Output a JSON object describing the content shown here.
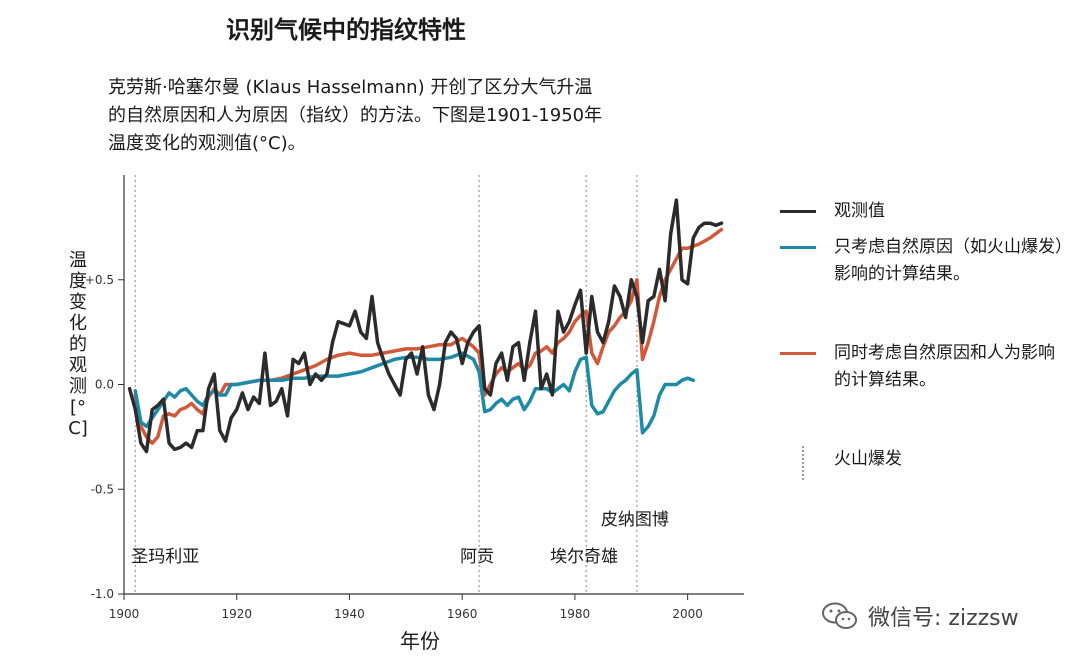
{
  "title": "识别气候中的指纹特性",
  "intro": [
    "克劳斯·哈塞尔曼 (Klaus  Hasselmann) 开创了区分大气升温",
    "的自然原因和人为原因（指纹）的方法。下图是1901-1950年",
    "温度变化的观测值(°C)。"
  ],
  "colors": {
    "observed": "#2b2b2b",
    "natural": "#1f8aa8",
    "combined": "#d2583a",
    "volcano": "#999999"
  },
  "legend": {
    "observed": "观测值",
    "natural": "只考虑自然原因（如火山爆发）影响的计算结果。",
    "combined": "同时考虑自然原因和人为影响的计算结果。",
    "volcano": "火山爆发"
  },
  "watermark": {
    "text": "微信号: zizzsw",
    "icon": "wechat-icon"
  },
  "chart_data": {
    "type": "line",
    "xlabel": "年份",
    "ylabel": "温度变化的观测[°C]",
    "xlim": [
      1900,
      2010
    ],
    "ylim": [
      -1.0,
      1.0
    ],
    "xticks": [
      1900,
      1920,
      1940,
      1960,
      1980,
      2000
    ],
    "yticks": [
      -1.0,
      -0.5,
      0.0,
      0.5
    ],
    "ytick_labels": [
      "-1.0",
      "-0.5",
      "0.0",
      "+0.5"
    ],
    "legend_position": "right",
    "grid": false,
    "annotations": [
      {
        "year": 1902,
        "label": "圣玛利亚"
      },
      {
        "year": 1963,
        "label": "阿贡"
      },
      {
        "year": 1982,
        "label": "埃尔奇雄"
      },
      {
        "year": 1991,
        "label": "皮纳图博"
      }
    ],
    "series": [
      {
        "name": "观测值",
        "x": [
          1901,
          1902,
          1903,
          1904,
          1905,
          1906,
          1907,
          1908,
          1909,
          1910,
          1911,
          1912,
          1913,
          1914,
          1915,
          1916,
          1917,
          1918,
          1919,
          1920,
          1921,
          1922,
          1923,
          1924,
          1925,
          1926,
          1927,
          1928,
          1929,
          1930,
          1931,
          1932,
          1933,
          1934,
          1935,
          1936,
          1937,
          1938,
          1939,
          1940,
          1941,
          1942,
          1943,
          1944,
          1945,
          1946,
          1947,
          1948,
          1949,
          1950,
          1951,
          1952,
          1953,
          1954,
          1955,
          1956,
          1957,
          1958,
          1959,
          1960,
          1961,
          1962,
          1963,
          1964,
          1965,
          1966,
          1967,
          1968,
          1969,
          1970,
          1971,
          1972,
          1973,
          1974,
          1975,
          1976,
          1977,
          1978,
          1979,
          1980,
          1981,
          1982,
          1983,
          1984,
          1985,
          1986,
          1987,
          1988,
          1989,
          1990,
          1991,
          1992,
          1993,
          1994,
          1995,
          1996,
          1997,
          1998,
          1999,
          2000,
          2001,
          2002,
          2003,
          2004,
          2005,
          2006
        ],
        "y": [
          -0.02,
          -0.12,
          -0.28,
          -0.32,
          -0.12,
          -0.1,
          -0.07,
          -0.28,
          -0.31,
          -0.3,
          -0.28,
          -0.3,
          -0.22,
          -0.22,
          -0.02,
          0.05,
          -0.22,
          -0.27,
          -0.16,
          -0.12,
          -0.04,
          -0.12,
          -0.06,
          -0.09,
          0.15,
          -0.1,
          -0.08,
          -0.02,
          -0.15,
          0.12,
          0.1,
          0.15,
          0.0,
          0.05,
          0.02,
          0.05,
          0.2,
          0.3,
          0.29,
          0.28,
          0.35,
          0.25,
          0.22,
          0.42,
          0.2,
          0.12,
          0.05,
          0.0,
          -0.05,
          0.12,
          0.15,
          0.05,
          0.18,
          -0.05,
          -0.12,
          0.0,
          0.2,
          0.25,
          0.22,
          0.1,
          0.2,
          0.25,
          0.28,
          -0.02,
          -0.05,
          0.1,
          0.15,
          0.02,
          0.18,
          0.2,
          0.02,
          0.2,
          0.35,
          -0.02,
          0.05,
          -0.05,
          0.35,
          0.25,
          0.3,
          0.38,
          0.45,
          0.15,
          0.42,
          0.25,
          0.2,
          0.3,
          0.47,
          0.42,
          0.32,
          0.5,
          0.42,
          0.2,
          0.4,
          0.42,
          0.55,
          0.4,
          0.72,
          0.88,
          0.5,
          0.48,
          0.7,
          0.75,
          0.77,
          0.77,
          0.76,
          0.77
        ]
      },
      {
        "name": "只考虑自然原因（如火山爆发）影响的计算结果。",
        "x": [
          1902,
          1903,
          1904,
          1905,
          1906,
          1907,
          1908,
          1909,
          1910,
          1911,
          1912,
          1913,
          1914,
          1915,
          1916,
          1917,
          1918,
          1919,
          1920,
          1922,
          1924,
          1926,
          1928,
          1930,
          1932,
          1934,
          1936,
          1938,
          1940,
          1942,
          1944,
          1946,
          1948,
          1950,
          1952,
          1954,
          1956,
          1958,
          1960,
          1962,
          1963,
          1964,
          1965,
          1966,
          1967,
          1968,
          1969,
          1970,
          1971,
          1972,
          1973,
          1974,
          1975,
          1976,
          1977,
          1978,
          1979,
          1980,
          1981,
          1982,
          1983,
          1984,
          1985,
          1986,
          1987,
          1988,
          1989,
          1990,
          1991,
          1992,
          1993,
          1994,
          1995,
          1996,
          1997,
          1998,
          1999,
          2000,
          2001
        ],
        "y": [
          -0.03,
          -0.18,
          -0.2,
          -0.16,
          -0.12,
          -0.08,
          -0.04,
          -0.06,
          -0.03,
          -0.02,
          -0.05,
          -0.08,
          -0.1,
          -0.05,
          -0.03,
          -0.05,
          -0.05,
          0.0,
          0.0,
          0.01,
          0.02,
          0.02,
          0.02,
          0.03,
          0.03,
          0.04,
          0.04,
          0.04,
          0.05,
          0.06,
          0.08,
          0.1,
          0.12,
          0.13,
          0.13,
          0.12,
          0.12,
          0.13,
          0.15,
          0.12,
          0.06,
          -0.13,
          -0.12,
          -0.09,
          -0.07,
          -0.1,
          -0.07,
          -0.06,
          -0.12,
          -0.08,
          -0.02,
          -0.02,
          -0.02,
          -0.04,
          -0.02,
          0.0,
          -0.03,
          0.06,
          0.12,
          0.13,
          -0.1,
          -0.14,
          -0.13,
          -0.08,
          -0.03,
          0.0,
          0.02,
          0.05,
          0.07,
          -0.23,
          -0.2,
          -0.15,
          -0.05,
          0.0,
          0.0,
          0.0,
          0.02,
          0.03,
          0.02
        ]
      },
      {
        "name": "同时考虑自然原因和人为影响的计算结果。",
        "x": [
          1902,
          1903,
          1904,
          1905,
          1906,
          1907,
          1908,
          1909,
          1910,
          1911,
          1912,
          1913,
          1914,
          1915,
          1916,
          1917,
          1918,
          1919,
          1920,
          1922,
          1924,
          1926,
          1928,
          1930,
          1932,
          1934,
          1936,
          1938,
          1940,
          1942,
          1944,
          1946,
          1948,
          1950,
          1952,
          1954,
          1956,
          1958,
          1960,
          1962,
          1963,
          1964,
          1965,
          1966,
          1967,
          1968,
          1969,
          1970,
          1971,
          1972,
          1973,
          1974,
          1975,
          1976,
          1977,
          1978,
          1979,
          1980,
          1981,
          1982,
          1983,
          1984,
          1985,
          1986,
          1987,
          1988,
          1989,
          1990,
          1991,
          1992,
          1993,
          1994,
          1995,
          1996,
          1997,
          1998,
          1999,
          2000,
          2002,
          2004,
          2006
        ],
        "y": [
          -0.05,
          -0.2,
          -0.25,
          -0.28,
          -0.25,
          -0.15,
          -0.14,
          -0.15,
          -0.12,
          -0.11,
          -0.09,
          -0.12,
          -0.14,
          -0.06,
          -0.02,
          -0.05,
          0.0,
          0.0,
          0.0,
          0.01,
          0.02,
          0.02,
          0.03,
          0.05,
          0.07,
          0.09,
          0.12,
          0.14,
          0.15,
          0.14,
          0.14,
          0.15,
          0.16,
          0.17,
          0.17,
          0.18,
          0.19,
          0.19,
          0.22,
          0.18,
          0.15,
          -0.05,
          0.0,
          0.05,
          0.08,
          0.06,
          0.08,
          0.1,
          0.07,
          0.09,
          0.15,
          0.16,
          0.18,
          0.15,
          0.2,
          0.22,
          0.25,
          0.3,
          0.33,
          0.35,
          0.15,
          0.1,
          0.18,
          0.25,
          0.28,
          0.32,
          0.35,
          0.4,
          0.5,
          0.12,
          0.2,
          0.3,
          0.42,
          0.5,
          0.55,
          0.6,
          0.65,
          0.65,
          0.67,
          0.7,
          0.74
        ]
      }
    ]
  }
}
